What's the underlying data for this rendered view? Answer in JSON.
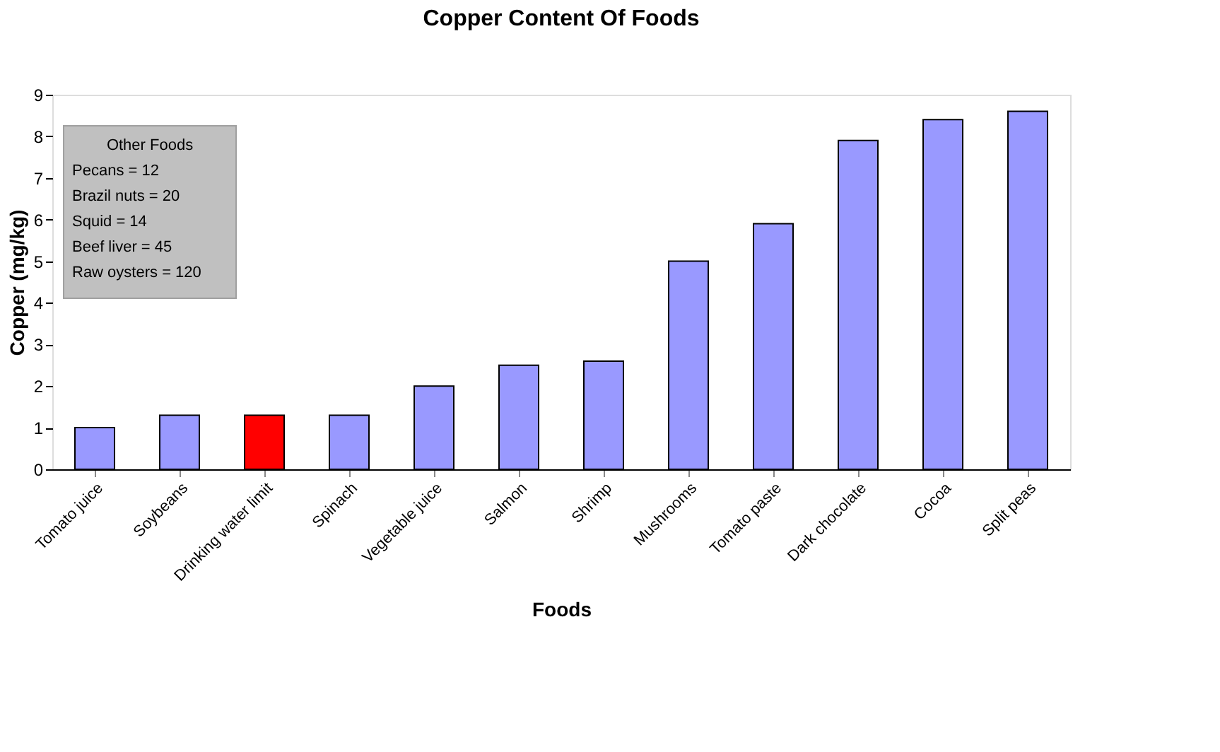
{
  "chart_data": {
    "type": "bar",
    "title": "Copper Content Of Foods",
    "xlabel": "Foods",
    "ylabel": "Copper (mg/kg)",
    "categories": [
      "Tomato juice",
      "Soybeans",
      "Drinking water limit",
      "Spinach",
      "Vegetable juice",
      "Salmon",
      "Shrimp",
      "Mushrooms",
      "Tomato paste",
      "Dark chocolate",
      "Cocoa",
      "Split peas"
    ],
    "values": [
      1.0,
      1.3,
      1.3,
      1.3,
      2.0,
      2.5,
      2.6,
      5.0,
      5.9,
      7.9,
      8.4,
      8.6
    ],
    "colors": [
      "#9999ff",
      "#9999ff",
      "#ff0000",
      "#9999ff",
      "#9999ff",
      "#9999ff",
      "#9999ff",
      "#9999ff",
      "#9999ff",
      "#9999ff",
      "#9999ff",
      "#9999ff"
    ],
    "ylim": [
      0,
      9
    ],
    "yticks": [
      0,
      1,
      2,
      3,
      4,
      5,
      6,
      7,
      8,
      9
    ],
    "grid": false,
    "annotations": [
      "Other Foods",
      "Pecans = 12",
      "Brazil nuts = 20",
      "Squid = 14",
      "Beef liver = 45",
      "Raw oysters = 120"
    ]
  }
}
